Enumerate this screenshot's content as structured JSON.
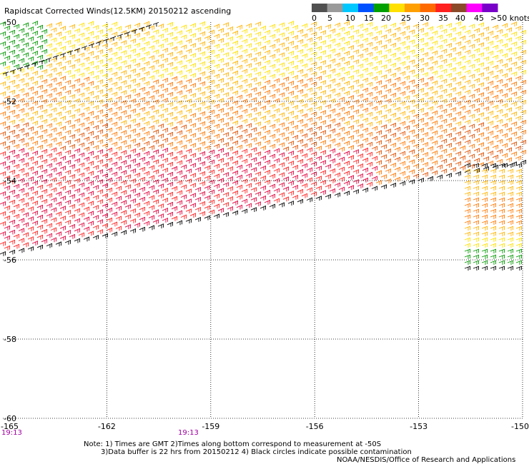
{
  "title": "Rapidscat Corrected Winds(12.5KM) 20150212 ascending",
  "colorbar": {
    "labels": [
      "0",
      "5",
      "10",
      "15",
      "20",
      "25",
      "30",
      "35",
      "40",
      "45",
      ">50 knots"
    ],
    "colors": [
      "#505050",
      "#9a9a9a",
      "#00c8ff",
      "#0050ff",
      "#00a000",
      "#ffe000",
      "#ffa000",
      "#ff6a00",
      "#ff2020",
      "#8a4a2a",
      "#ff00ff",
      "#7800c8"
    ]
  },
  "map": {
    "lon_ticks": [
      "-165",
      "-162",
      "-159",
      "-156",
      "-153",
      "-150"
    ],
    "lat_ticks": [
      "-50",
      "-52",
      "-54",
      "-56",
      "-58",
      "-60"
    ],
    "lon_range": [
      -165,
      -150
    ],
    "lat_range": [
      -60,
      -50
    ]
  },
  "times": [
    "19:13",
    "19:13"
  ],
  "notes": {
    "line1": "Note: 1) Times are GMT 2)Times along bottom correspond to measurement at -50S",
    "line2": "3)Data buffer is 22 hrs from 20150212 4) Black circles indicate possible contamination",
    "credit": "NOAA/NESDIS/Office of Research and Applications"
  },
  "wind_colors": {
    "black": "#000000",
    "green": "#009600",
    "yellow": "#ffe000",
    "gold": "#ffb400",
    "orange": "#ff7800",
    "darkorange": "#e05000",
    "red": "#ff1e1e",
    "crimson": "#e0003c"
  }
}
